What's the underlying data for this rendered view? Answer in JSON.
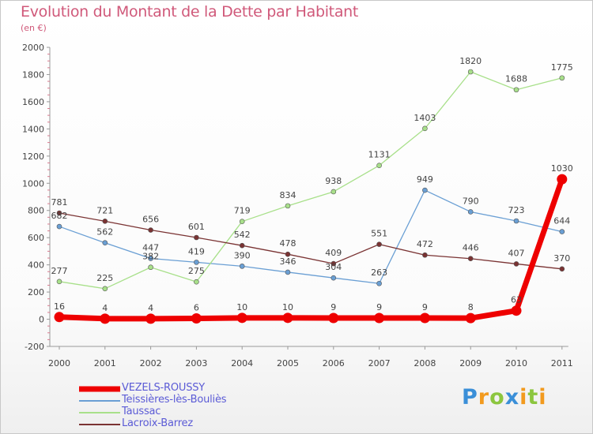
{
  "chart_data": {
    "type": "line",
    "title": "Evolution du Montant de la Dette par Habitant",
    "subtitle": "(en €)",
    "xlabel": "",
    "ylabel": "",
    "categories": [
      "2000",
      "2001",
      "2002",
      "2003",
      "2004",
      "2005",
      "2006",
      "2007",
      "2008",
      "2009",
      "2010",
      "2011"
    ],
    "ylim": [
      -200,
      2000
    ],
    "yticks": [
      "-200",
      "0",
      "200",
      "400",
      "600",
      "800",
      "1000",
      "1200",
      "1400",
      "1600",
      "1800",
      "2000"
    ],
    "series": [
      {
        "name": "VEZELS-ROUSSY",
        "color": "#ee0000",
        "values": [
          16,
          4,
          4,
          6,
          10,
          10,
          9,
          9,
          9,
          8,
          63,
          1030
        ],
        "labels": [
          "16",
          "4",
          "4",
          "6",
          "10",
          "10",
          "9",
          "9",
          "9",
          "8",
          "63",
          "1030"
        ]
      },
      {
        "name": "Teissières-lès-Bouliès",
        "color": "#6a9fd4",
        "values": [
          682,
          562,
          447,
          419,
          390,
          346,
          304,
          263,
          949,
          790,
          723,
          644
        ],
        "labels": [
          "682",
          "562",
          "447",
          "419",
          "390",
          "346",
          "304",
          "263",
          "949",
          "790",
          "723",
          "644"
        ]
      },
      {
        "name": "Taussac",
        "color": "#a8e08a",
        "values": [
          277,
          225,
          382,
          275,
          719,
          834,
          938,
          1131,
          1403,
          1820,
          1688,
          1775
        ],
        "labels": [
          "277",
          "225",
          "382",
          "275",
          "719",
          "834",
          "938",
          "1131",
          "1403",
          "1820",
          "1688",
          "1775"
        ]
      },
      {
        "name": "Lacroix-Barrez",
        "color": "#7a3333",
        "values": [
          781,
          721,
          656,
          601,
          542,
          478,
          409,
          551,
          472,
          446,
          407,
          370
        ],
        "labels": [
          "781",
          "721",
          "656",
          "601",
          "542",
          "478",
          "409",
          "551",
          "472",
          "446",
          "407",
          "370"
        ]
      }
    ]
  },
  "logo": {
    "letters": [
      "P",
      "r",
      "o",
      "x",
      "i",
      "t",
      "i"
    ]
  }
}
